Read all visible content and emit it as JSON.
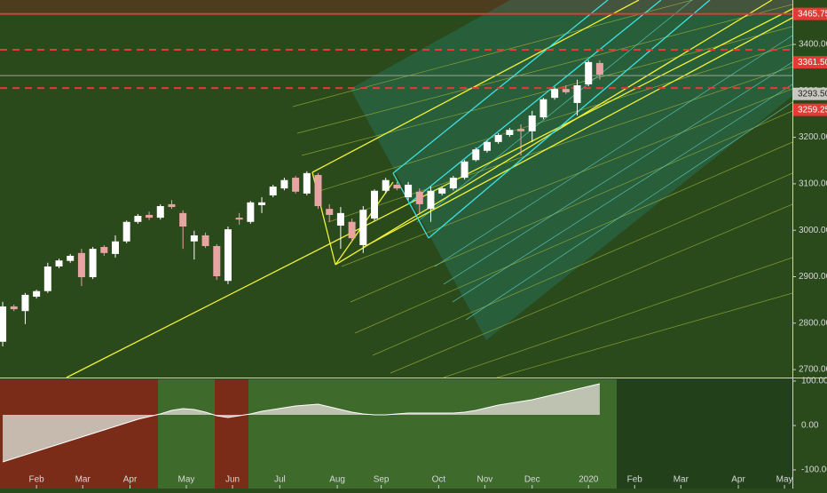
{
  "chart_data": [
    {
      "type": "candlestick",
      "x": [
        0,
        1,
        2,
        3,
        4,
        5,
        6,
        7,
        8,
        9,
        10,
        11,
        12,
        13,
        14,
        15,
        16,
        17,
        18,
        19,
        20,
        21,
        22,
        23,
        24,
        25,
        26,
        27,
        28,
        29,
        30,
        31,
        32,
        33,
        34,
        35,
        36,
        37,
        38,
        39,
        40,
        41,
        42,
        43,
        44,
        45,
        46,
        47,
        48,
        49,
        50,
        51,
        52,
        53
      ],
      "open": [
        2760,
        2836,
        2826,
        2857,
        2869,
        2922,
        2934,
        2951,
        2899,
        2964,
        2949,
        2976,
        3018,
        3033,
        3027,
        3056,
        3037,
        2976,
        2989,
        2966,
        2891,
        3027,
        3018,
        3054,
        3075,
        3090,
        3113,
        3079,
        3119,
        3046,
        3010,
        3018,
        2968,
        3025,
        3085,
        3098,
        3071,
        3083,
        3046,
        3079,
        3090,
        3113,
        3151,
        3171,
        3190,
        3205,
        3218,
        3213,
        3243,
        3285,
        3304,
        3274,
        3314,
        3360
      ],
      "high": [
        2846,
        2840,
        2865,
        2872,
        2930,
        2939,
        2949,
        2960,
        2964,
        2968,
        2989,
        3021,
        3035,
        3040,
        3056,
        3065,
        3043,
        2999,
        2995,
        2970,
        3008,
        3037,
        3063,
        3071,
        3098,
        3113,
        3117,
        3127,
        3123,
        3056,
        3050,
        3025,
        3052,
        3088,
        3113,
        3104,
        3104,
        3090,
        3094,
        3094,
        3117,
        3151,
        3178,
        3193,
        3209,
        3220,
        3228,
        3257,
        3285,
        3308,
        3312,
        3324,
        3366,
        3366
      ],
      "low": [
        2750,
        2826,
        2798,
        2853,
        2865,
        2918,
        2930,
        2880,
        2895,
        2945,
        2941,
        2972,
        3014,
        3022,
        3023,
        3046,
        2960,
        2937,
        2962,
        2893,
        2884,
        3012,
        3014,
        3037,
        3071,
        3086,
        3079,
        3075,
        3046,
        3018,
        2960,
        2975,
        2951,
        3021,
        3079,
        3086,
        3065,
        3037,
        3018,
        3075,
        3086,
        3109,
        3148,
        3167,
        3186,
        3201,
        3161,
        3190,
        3239,
        3281,
        3293,
        3247,
        3310,
        3324
      ],
      "close": [
        2836,
        2830,
        2861,
        2869,
        2922,
        2935,
        2945,
        2899,
        2960,
        2951,
        2976,
        3018,
        3031,
        3027,
        3052,
        3050,
        3008,
        2989,
        2966,
        2901,
        3002,
        3023,
        3060,
        3060,
        3094,
        3108,
        3083,
        3123,
        3052,
        3033,
        3037,
        2983,
        3044,
        3085,
        3108,
        3090,
        3098,
        3056,
        3085,
        3090,
        3113,
        3148,
        3174,
        3190,
        3205,
        3216,
        3213,
        3247,
        3282,
        3304,
        3297,
        3312,
        3362,
        3335
      ],
      "up_color": "#ffffff",
      "down_color": "#e8a3a3",
      "xlim": [
        -0.24,
        70.1
      ],
      "xticks": [
        {
          "value": 3.0,
          "label": "Feb"
        },
        {
          "value": 7.1,
          "label": "Mar"
        },
        {
          "value": 11.3,
          "label": "Apr"
        },
        {
          "value": 16.3,
          "label": "May"
        },
        {
          "value": 20.4,
          "label": "Jun"
        },
        {
          "value": 24.6,
          "label": "Jul"
        },
        {
          "value": 29.7,
          "label": "Aug"
        },
        {
          "value": 33.6,
          "label": "Sep"
        },
        {
          "value": 38.7,
          "label": "Oct"
        },
        {
          "value": 42.8,
          "label": "Nov"
        },
        {
          "value": 47.0,
          "label": "Dec"
        },
        {
          "value": 52.0,
          "label": "2020"
        },
        {
          "value": 56.1,
          "label": "Feb"
        },
        {
          "value": 60.2,
          "label": "Mar"
        },
        {
          "value": 65.3,
          "label": "Apr"
        },
        {
          "value": 69.4,
          "label": "May"
        }
      ],
      "ylim": [
        2683,
        3495.6
      ],
      "yticks": [
        {
          "value": 2700,
          "label": "2700.00"
        },
        {
          "value": 2800,
          "label": "2800.00"
        },
        {
          "value": 2900,
          "label": "2900.00"
        },
        {
          "value": 3000,
          "label": "3000.00"
        },
        {
          "value": 3100,
          "label": "3100.00"
        },
        {
          "value": 3200,
          "label": "3200.00"
        },
        {
          "value": 3300,
          "label": "3300.00"
        },
        {
          "value": 3400,
          "label": "3400.00"
        }
      ],
      "levels": [
        {
          "value": 3465.75,
          "style": "solid",
          "color": "#e53935"
        },
        {
          "value": 3388.5,
          "style": "dashed",
          "color": "#e53935"
        },
        {
          "value": 3333,
          "style": "thin",
          "color": "#b0b0a0"
        },
        {
          "value": 3306,
          "style": "dashed",
          "color": "#e53935"
        }
      ],
      "price_labels": [
        {
          "value": 3465.75,
          "label": "3465.75",
          "color": "#e53935"
        },
        {
          "value": 3361.5,
          "label": "3361.50",
          "color": "#e53935"
        },
        {
          "value": 3293.5,
          "label": "3293.50",
          "color": "#c8c8c0"
        },
        {
          "value": 3259.25,
          "label": "3259.25",
          "color": "#e53935"
        }
      ]
    },
    {
      "type": "area",
      "values": [
        -82,
        -74,
        -66,
        -58,
        -50,
        -42,
        -34,
        -26,
        -18,
        -10,
        -2,
        6,
        14,
        20,
        26,
        34,
        38,
        36,
        30,
        22,
        18,
        22,
        26,
        32,
        36,
        40,
        44,
        46,
        48,
        42,
        36,
        30,
        26,
        24,
        24,
        26,
        28,
        28,
        28,
        28,
        28,
        30,
        34,
        40,
        46,
        50,
        54,
        58,
        64,
        70,
        76,
        82,
        88,
        94
      ],
      "baseline": 24,
      "color": "#d4d2c8",
      "ylim": [
        -142,
        104
      ],
      "yticks": [
        {
          "value": 100,
          "label": "100.00"
        },
        {
          "value": 0,
          "label": "0.00"
        },
        {
          "value": -100,
          "label": "-100.00"
        }
      ]
    }
  ]
}
